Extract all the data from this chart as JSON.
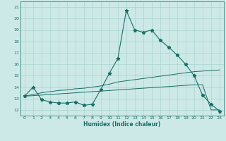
{
  "xlabel": "Humidex (Indice chaleur)",
  "bg_color": "#cce9e8",
  "line_color": "#1a6e64",
  "grid_color": "#aad4d2",
  "xlim": [
    -0.5,
    23.5
  ],
  "ylim": [
    11.5,
    21.5
  ],
  "xticks": [
    0,
    1,
    2,
    3,
    4,
    5,
    6,
    7,
    8,
    9,
    10,
    11,
    12,
    13,
    14,
    15,
    16,
    17,
    18,
    19,
    20,
    21,
    22,
    23
  ],
  "yticks": [
    12,
    13,
    14,
    15,
    16,
    17,
    18,
    19,
    20,
    21
  ],
  "line1_x": [
    0,
    1,
    2,
    3,
    4,
    5,
    6,
    7,
    8,
    9,
    10,
    11,
    12,
    13,
    14,
    15,
    16,
    17,
    18,
    19,
    20,
    21,
    22,
    23
  ],
  "line1_y": [
    13.2,
    14.0,
    12.9,
    12.7,
    12.6,
    12.6,
    12.7,
    12.4,
    12.5,
    13.8,
    15.2,
    16.5,
    20.7,
    19.0,
    18.8,
    19.0,
    18.1,
    17.5,
    16.8,
    16.0,
    15.0,
    13.3,
    12.5,
    11.9
  ],
  "line2_x": [
    0,
    1,
    2,
    3,
    4,
    5,
    6,
    7,
    8,
    9,
    10,
    11,
    12,
    13,
    14,
    15,
    16,
    17,
    18,
    19,
    20,
    21,
    22,
    23
  ],
  "line2_y": [
    13.2,
    13.35,
    13.5,
    13.6,
    13.7,
    13.75,
    13.85,
    13.9,
    14.0,
    14.1,
    14.25,
    14.45,
    14.55,
    14.65,
    14.75,
    14.85,
    14.95,
    15.05,
    15.15,
    15.25,
    15.35,
    15.4,
    15.45,
    15.5
  ],
  "line3_x": [
    0,
    1,
    2,
    3,
    4,
    5,
    6,
    7,
    8,
    9,
    10,
    11,
    12,
    13,
    14,
    15,
    16,
    17,
    18,
    19,
    20,
    21,
    22,
    23
  ],
  "line3_y": [
    13.2,
    13.25,
    13.3,
    13.35,
    13.4,
    13.45,
    13.5,
    13.55,
    13.6,
    13.65,
    13.7,
    13.75,
    13.8,
    13.85,
    13.9,
    13.95,
    14.0,
    14.05,
    14.1,
    14.15,
    14.2,
    14.2,
    12.0,
    12.0
  ]
}
